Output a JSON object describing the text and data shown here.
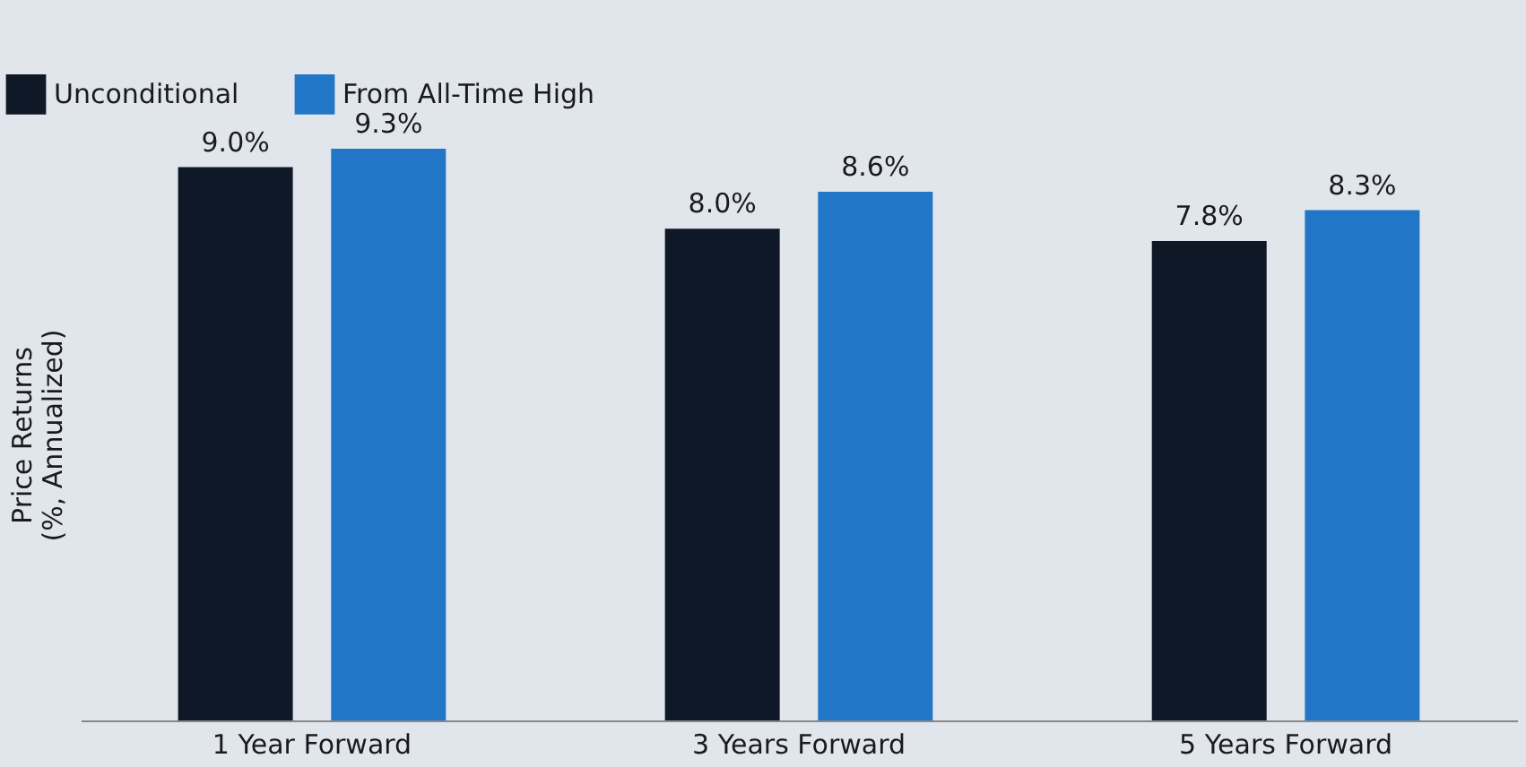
{
  "chart_data": {
    "type": "bar",
    "ylabel": "Price Returns\n(%, Annualized)",
    "categories": [
      "1 Year Forward",
      "3 Years Forward",
      "5 Years Forward"
    ],
    "series": [
      {
        "name": "Unconditional",
        "color": "#0e1826",
        "values": [
          9.0,
          8.0,
          7.8
        ],
        "value_labels": [
          "9.0%",
          "8.0%",
          "7.8%"
        ]
      },
      {
        "name": "From All-Time High",
        "color": "#2176c7",
        "values": [
          9.3,
          8.6,
          8.3
        ],
        "value_labels": [
          "9.3%",
          "8.6%",
          "8.3%"
        ]
      }
    ],
    "tick_labels": "x",
    "grid": false,
    "legend": "top left"
  }
}
